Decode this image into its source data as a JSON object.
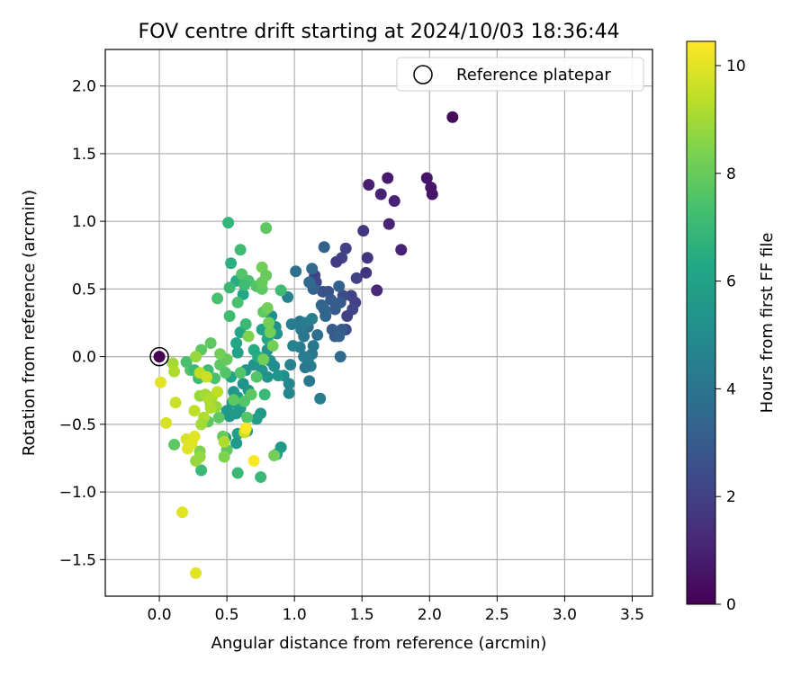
{
  "chart_data": {
    "type": "scatter",
    "title": "FOV centre drift starting at 2024/10/03 18:36:44",
    "xlabel": "Angular distance from reference (arcmin)",
    "ylabel": "Rotation from reference (arcmin)",
    "xlim": [
      -0.4,
      3.65
    ],
    "ylim": [
      -1.77,
      2.27
    ],
    "xticks": [
      0.0,
      0.5,
      1.0,
      1.5,
      2.0,
      2.5,
      3.0,
      3.5
    ],
    "yticks": [
      -1.5,
      -1.0,
      -0.5,
      0.0,
      0.5,
      1.0,
      1.5,
      2.0
    ],
    "xtick_labels": [
      "0.0",
      "0.5",
      "1.0",
      "1.5",
      "2.0",
      "2.5",
      "3.0",
      "3.5"
    ],
    "ytick_labels": [
      "−1.5",
      "−1.0",
      "−0.5",
      "0.0",
      "0.5",
      "1.0",
      "1.5",
      "2.0"
    ],
    "grid": true,
    "legend": {
      "placement": "upper-right",
      "entry": "Reference platepar"
    },
    "reference_point": {
      "x": 0.0,
      "y": 0.0
    },
    "colorbar": {
      "label": "Hours from first FF file",
      "min": 0,
      "max": 10.45,
      "ticks": [
        0,
        2,
        4,
        6,
        8,
        10
      ],
      "tick_labels": [
        "0",
        "2",
        "4",
        "6",
        "8",
        "10"
      ],
      "colormap": "viridis"
    },
    "points": [
      [
        0.0,
        0.0,
        0.0
      ],
      [
        2.17,
        1.77,
        0.3
      ],
      [
        1.98,
        1.32,
        0.6
      ],
      [
        2.01,
        1.25,
        0.6
      ],
      [
        2.02,
        1.2,
        0.6
      ],
      [
        1.69,
        1.32,
        0.8
      ],
      [
        1.55,
        1.27,
        0.9
      ],
      [
        1.64,
        1.2,
        1.0
      ],
      [
        1.74,
        1.15,
        1.0
      ],
      [
        1.51,
        0.93,
        1.6
      ],
      [
        1.7,
        0.98,
        1.0
      ],
      [
        1.79,
        0.79,
        1.0
      ],
      [
        1.54,
        0.73,
        1.6
      ],
      [
        1.53,
        0.62,
        1.6
      ],
      [
        1.61,
        0.49,
        1.2
      ],
      [
        1.38,
        0.8,
        2.0
      ],
      [
        1.35,
        0.73,
        2.0
      ],
      [
        1.31,
        0.7,
        1.8
      ],
      [
        1.46,
        0.58,
        2.0
      ],
      [
        1.42,
        0.45,
        2.0
      ],
      [
        1.45,
        0.4,
        2.0
      ],
      [
        1.43,
        0.35,
        2.2
      ],
      [
        1.39,
        0.3,
        2.0
      ],
      [
        1.38,
        0.2,
        2.4
      ],
      [
        1.36,
        0.45,
        2.4
      ],
      [
        1.22,
        0.81,
        3.2
      ],
      [
        1.15,
        0.6,
        2.0
      ],
      [
        1.16,
        0.55,
        2.2
      ],
      [
        1.21,
        0.48,
        2.6
      ],
      [
        1.25,
        0.48,
        2.6
      ],
      [
        1.33,
        0.52,
        3.2
      ],
      [
        1.27,
        0.42,
        3.0
      ],
      [
        1.34,
        0.4,
        3.0
      ],
      [
        1.3,
        0.35,
        3.0
      ],
      [
        1.35,
        0.2,
        3.0
      ],
      [
        1.28,
        0.2,
        3.0
      ],
      [
        1.3,
        0.15,
        3.0
      ],
      [
        1.33,
        0.15,
        3.2
      ],
      [
        1.34,
        0.0,
        3.6
      ],
      [
        1.2,
        0.38,
        3.4
      ],
      [
        1.22,
        0.35,
        3.4
      ],
      [
        1.23,
        0.3,
        3.4
      ],
      [
        1.14,
        0.5,
        3.4
      ],
      [
        1.11,
        0.55,
        3.6
      ],
      [
        1.13,
        0.65,
        3.6
      ],
      [
        1.01,
        0.63,
        3.8
      ],
      [
        1.17,
        0.16,
        3.8
      ],
      [
        1.1,
        0.22,
        3.8
      ],
      [
        1.07,
        0.15,
        4.2
      ],
      [
        1.04,
        0.26,
        4.0
      ],
      [
        1.13,
        0.28,
        4.4
      ],
      [
        0.98,
        0.24,
        4.4
      ],
      [
        1.05,
        0.2,
        4.2
      ],
      [
        1.08,
        0.25,
        4.4
      ],
      [
        1.14,
        0.08,
        4.2
      ],
      [
        1.13,
        0.02,
        4.2
      ],
      [
        1.1,
        -0.02,
        4.4
      ],
      [
        1.12,
        -0.07,
        4.4
      ],
      [
        1.08,
        -0.08,
        4.2
      ],
      [
        1.07,
        0.0,
        4.4
      ],
      [
        1.04,
        0.07,
        4.4
      ],
      [
        0.99,
        0.08,
        4.6
      ],
      [
        0.97,
        -0.06,
        4.6
      ],
      [
        0.96,
        -0.2,
        4.8
      ],
      [
        0.96,
        -0.27,
        4.8
      ],
      [
        1.19,
        -0.31,
        4.4
      ],
      [
        1.11,
        -0.18,
        4.2
      ],
      [
        0.95,
        0.44,
        4.6
      ],
      [
        0.83,
        0.3,
        5.2
      ],
      [
        0.86,
        0.22,
        5.2
      ],
      [
        0.87,
        0.17,
        5.4
      ],
      [
        0.8,
        0.05,
        5.4
      ],
      [
        0.82,
        -0.03,
        5.2
      ],
      [
        0.85,
        -0.07,
        5.0
      ],
      [
        0.92,
        -0.14,
        5.0
      ],
      [
        0.88,
        -0.14,
        5.4
      ],
      [
        0.8,
        -0.15,
        5.4
      ],
      [
        0.76,
        -0.1,
        5.4
      ],
      [
        0.7,
        -0.06,
        5.4
      ],
      [
        0.64,
        -0.1,
        5.4
      ],
      [
        0.62,
        -0.2,
        5.4
      ],
      [
        0.66,
        -0.25,
        5.4
      ],
      [
        0.55,
        -0.26,
        5.4
      ],
      [
        0.58,
        -0.3,
        5.6
      ],
      [
        0.54,
        -0.34,
        5.6
      ],
      [
        0.6,
        -0.38,
        5.8
      ],
      [
        0.57,
        -0.42,
        5.6
      ],
      [
        0.52,
        -0.44,
        5.6
      ],
      [
        0.5,
        -0.4,
        5.6
      ],
      [
        0.58,
        -0.57,
        5.8
      ],
      [
        0.65,
        -0.55,
        5.8
      ],
      [
        0.75,
        -0.42,
        5.6
      ],
      [
        0.72,
        -0.46,
        5.8
      ],
      [
        0.57,
        -0.64,
        5.6
      ],
      [
        0.49,
        -0.6,
        5.6
      ],
      [
        0.9,
        -0.67,
        5.6
      ],
      [
        0.87,
        -0.72,
        5.8
      ],
      [
        0.76,
        0.2,
        6.0
      ],
      [
        0.8,
        0.13,
        6.2
      ],
      [
        0.6,
        0.18,
        6.2
      ],
      [
        0.57,
        0.1,
        6.2
      ],
      [
        0.58,
        0.03,
        6.0
      ],
      [
        0.53,
        -0.15,
        6.0
      ],
      [
        0.7,
        0.05,
        6.4
      ],
      [
        0.73,
        0.0,
        6.4
      ],
      [
        0.78,
        -0.28,
        7.0
      ],
      [
        0.53,
        0.69,
        6.6
      ],
      [
        0.57,
        0.56,
        6.4
      ],
      [
        0.62,
        0.46,
        6.2
      ],
      [
        0.52,
        0.51,
        7.0
      ],
      [
        0.51,
        0.99,
        6.8
      ],
      [
        0.6,
        0.79,
        7.2
      ],
      [
        0.61,
        0.61,
        7.6
      ],
      [
        0.66,
        0.56,
        7.4
      ],
      [
        0.63,
        0.53,
        7.2
      ],
      [
        0.52,
        0.3,
        7.2
      ],
      [
        0.58,
        0.4,
        7.4
      ],
      [
        0.64,
        0.24,
        7.0
      ],
      [
        0.72,
        0.52,
        7.6
      ],
      [
        0.76,
        0.5,
        7.8
      ],
      [
        0.9,
        0.49,
        7.2
      ],
      [
        0.79,
        0.95,
        7.8
      ],
      [
        0.76,
        0.66,
        8.2
      ],
      [
        0.79,
        0.6,
        8.0
      ],
      [
        0.76,
        0.55,
        8.0
      ],
      [
        0.77,
        0.33,
        7.8
      ],
      [
        0.8,
        0.36,
        8.2
      ],
      [
        0.81,
        0.25,
        8.2
      ],
      [
        0.82,
        0.18,
        8.2
      ],
      [
        0.84,
        0.08,
        8.2
      ],
      [
        0.77,
        -0.02,
        8.2
      ],
      [
        0.43,
        0.43,
        7.4
      ],
      [
        0.66,
        0.15,
        8.4
      ],
      [
        0.6,
        -0.12,
        7.6
      ],
      [
        0.72,
        -0.15,
        7.6
      ],
      [
        0.68,
        -0.28,
        7.8
      ],
      [
        0.63,
        -0.33,
        7.6
      ],
      [
        0.65,
        -0.45,
        7.6
      ],
      [
        0.55,
        -0.32,
        7.8
      ],
      [
        0.44,
        -0.45,
        7.8
      ],
      [
        0.38,
        -0.35,
        7.8
      ],
      [
        0.36,
        -0.48,
        7.8
      ],
      [
        0.29,
        -0.16,
        7.2
      ],
      [
        0.36,
        -0.1,
        7.2
      ],
      [
        0.41,
        -0.16,
        7.4
      ],
      [
        0.45,
        -0.06,
        7.8
      ],
      [
        0.49,
        -0.12,
        7.6
      ],
      [
        0.5,
        -0.02,
        8.0
      ],
      [
        0.45,
        0.02,
        8.2
      ],
      [
        0.38,
        0.1,
        7.8
      ],
      [
        0.31,
        0.05,
        7.8
      ],
      [
        0.23,
        -0.1,
        7.6
      ],
      [
        0.26,
        -0.1,
        7.0
      ],
      [
        0.2,
        -0.04,
        7.4
      ],
      [
        0.47,
        -0.59,
        8.0
      ],
      [
        0.5,
        -0.69,
        7.8
      ],
      [
        0.48,
        -0.74,
        8.4
      ],
      [
        0.31,
        -0.84,
        7.0
      ],
      [
        0.58,
        -0.86,
        7.0
      ],
      [
        0.75,
        -0.89,
        7.0
      ],
      [
        0.85,
        -0.73,
        8.2
      ],
      [
        0.11,
        -0.65,
        7.8
      ],
      [
        0.3,
        -0.7,
        8.4
      ],
      [
        0.27,
        -0.77,
        8.8
      ],
      [
        0.3,
        -0.74,
        8.8
      ],
      [
        0.27,
        0.0,
        8.8
      ],
      [
        0.3,
        -0.29,
        8.8
      ],
      [
        0.34,
        -0.28,
        9.0
      ],
      [
        0.37,
        -0.32,
        9.2
      ],
      [
        0.39,
        -0.3,
        9.2
      ],
      [
        0.42,
        -0.37,
        8.8
      ],
      [
        0.38,
        -0.38,
        9.2
      ],
      [
        0.33,
        -0.45,
        9.2
      ],
      [
        0.31,
        -0.5,
        9.0
      ],
      [
        0.26,
        -0.4,
        9.4
      ],
      [
        0.48,
        -0.63,
        9.2
      ],
      [
        0.63,
        -0.56,
        9.6
      ],
      [
        0.43,
        -0.26,
        9.4
      ],
      [
        0.3,
        -0.12,
        9.4
      ],
      [
        0.35,
        -0.15,
        9.6
      ],
      [
        0.1,
        -0.05,
        9.0
      ],
      [
        0.11,
        -0.11,
        9.2
      ],
      [
        0.12,
        -0.34,
        9.6
      ],
      [
        0.01,
        -0.19,
        10.0
      ],
      [
        0.05,
        -0.49,
        9.8
      ],
      [
        0.2,
        -0.61,
        9.8
      ],
      [
        0.21,
        -0.68,
        10.0
      ],
      [
        0.24,
        -0.64,
        10.0
      ],
      [
        0.26,
        -0.59,
        10.0
      ],
      [
        0.64,
        -0.53,
        10.4
      ],
      [
        0.7,
        -0.77,
        10.4
      ],
      [
        0.17,
        -1.15,
        10.0
      ],
      [
        0.27,
        -1.6,
        10.0
      ]
    ]
  }
}
